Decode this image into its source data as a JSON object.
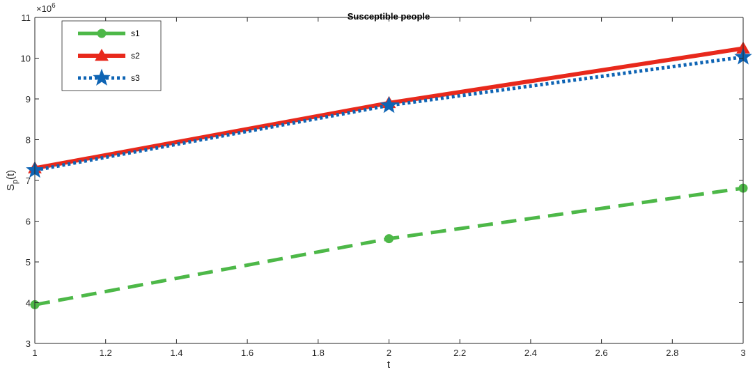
{
  "chart_data": {
    "type": "line",
    "title": "Susceptible people",
    "xlabel": "t",
    "ylabel_main": "S",
    "ylabel_sub": "p",
    "ylabel_tail": "(t)",
    "y_multiplier": "×10",
    "y_multiplier_exp": "6",
    "xlim": [
      1,
      3
    ],
    "ylim": [
      3,
      11
    ],
    "x_ticks": [
      "1",
      "1.2",
      "1.4",
      "1.6",
      "1.8",
      "2",
      "2.2",
      "2.4",
      "2.6",
      "2.8",
      "3"
    ],
    "y_ticks": [
      "3",
      "4",
      "5",
      "6",
      "7",
      "8",
      "9",
      "10",
      "11"
    ],
    "grid": false,
    "legend_position": "top-left",
    "series": [
      {
        "name": "s1",
        "x": [
          1,
          2,
          3
        ],
        "y": [
          3.95,
          5.57,
          6.81
        ],
        "color": "#4DB848",
        "line_style": "dashed",
        "marker": "circle"
      },
      {
        "name": "s2",
        "x": [
          1,
          2,
          3
        ],
        "y": [
          7.3,
          8.9,
          10.24
        ],
        "color": "#E8291C",
        "line_style": "solid",
        "marker": "triangle"
      },
      {
        "name": "s3",
        "x": [
          1,
          2,
          3
        ],
        "y": [
          7.25,
          8.84,
          10.03
        ],
        "color": "#0E64B4",
        "line_style": "dotted",
        "marker": "star"
      }
    ]
  }
}
